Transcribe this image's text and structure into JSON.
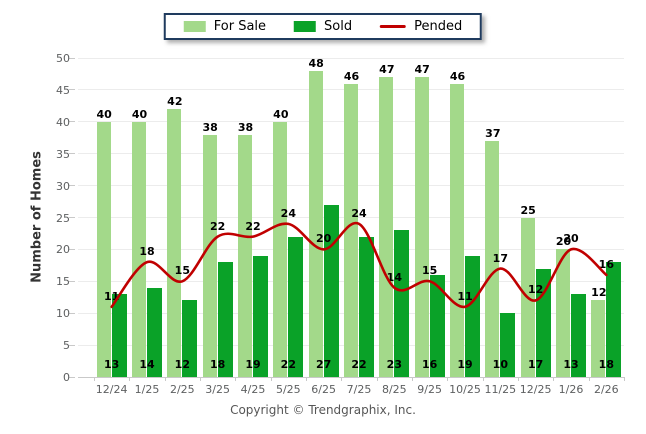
{
  "footer": {
    "copyright": "Copyright © Trendgraphix, Inc."
  },
  "y_axis": {
    "title": "Number of Homes",
    "min": 0,
    "max": 50,
    "step": 5
  },
  "chart_data": {
    "type": "bar",
    "title": "",
    "xlabel": "",
    "ylabel": "Number of Homes",
    "ylim": [
      0,
      50
    ],
    "ytick_step": 5,
    "grid": true,
    "legend_position": "top",
    "categories": [
      "12/24",
      "1/25",
      "2/25",
      "3/25",
      "4/25",
      "5/25",
      "6/25",
      "7/25",
      "8/25",
      "9/25",
      "10/25",
      "11/25",
      "12/25",
      "1/26",
      "2/26"
    ],
    "series": [
      {
        "name": "For Sale",
        "type": "bar",
        "color": "#A3D98A",
        "values": [
          40,
          40,
          42,
          38,
          38,
          40,
          48,
          46,
          47,
          47,
          46,
          37,
          25,
          20,
          12
        ]
      },
      {
        "name": "Sold",
        "type": "bar",
        "color": "#0AA228",
        "values": [
          13,
          14,
          12,
          18,
          19,
          22,
          27,
          22,
          23,
          16,
          19,
          10,
          17,
          13,
          18
        ]
      },
      {
        "name": "Pended",
        "type": "line",
        "color": "#C00000",
        "values": [
          11,
          18,
          15,
          22,
          22,
          24,
          20,
          24,
          14,
          15,
          11,
          17,
          12,
          20,
          16
        ]
      }
    ]
  },
  "colors": {
    "for_sale": "#A3D98A",
    "sold": "#0AA228",
    "pended": "#C00000",
    "legend_border": "#1F3B5E",
    "gridline": "#ececec",
    "axis_text": "#5d5f60"
  }
}
